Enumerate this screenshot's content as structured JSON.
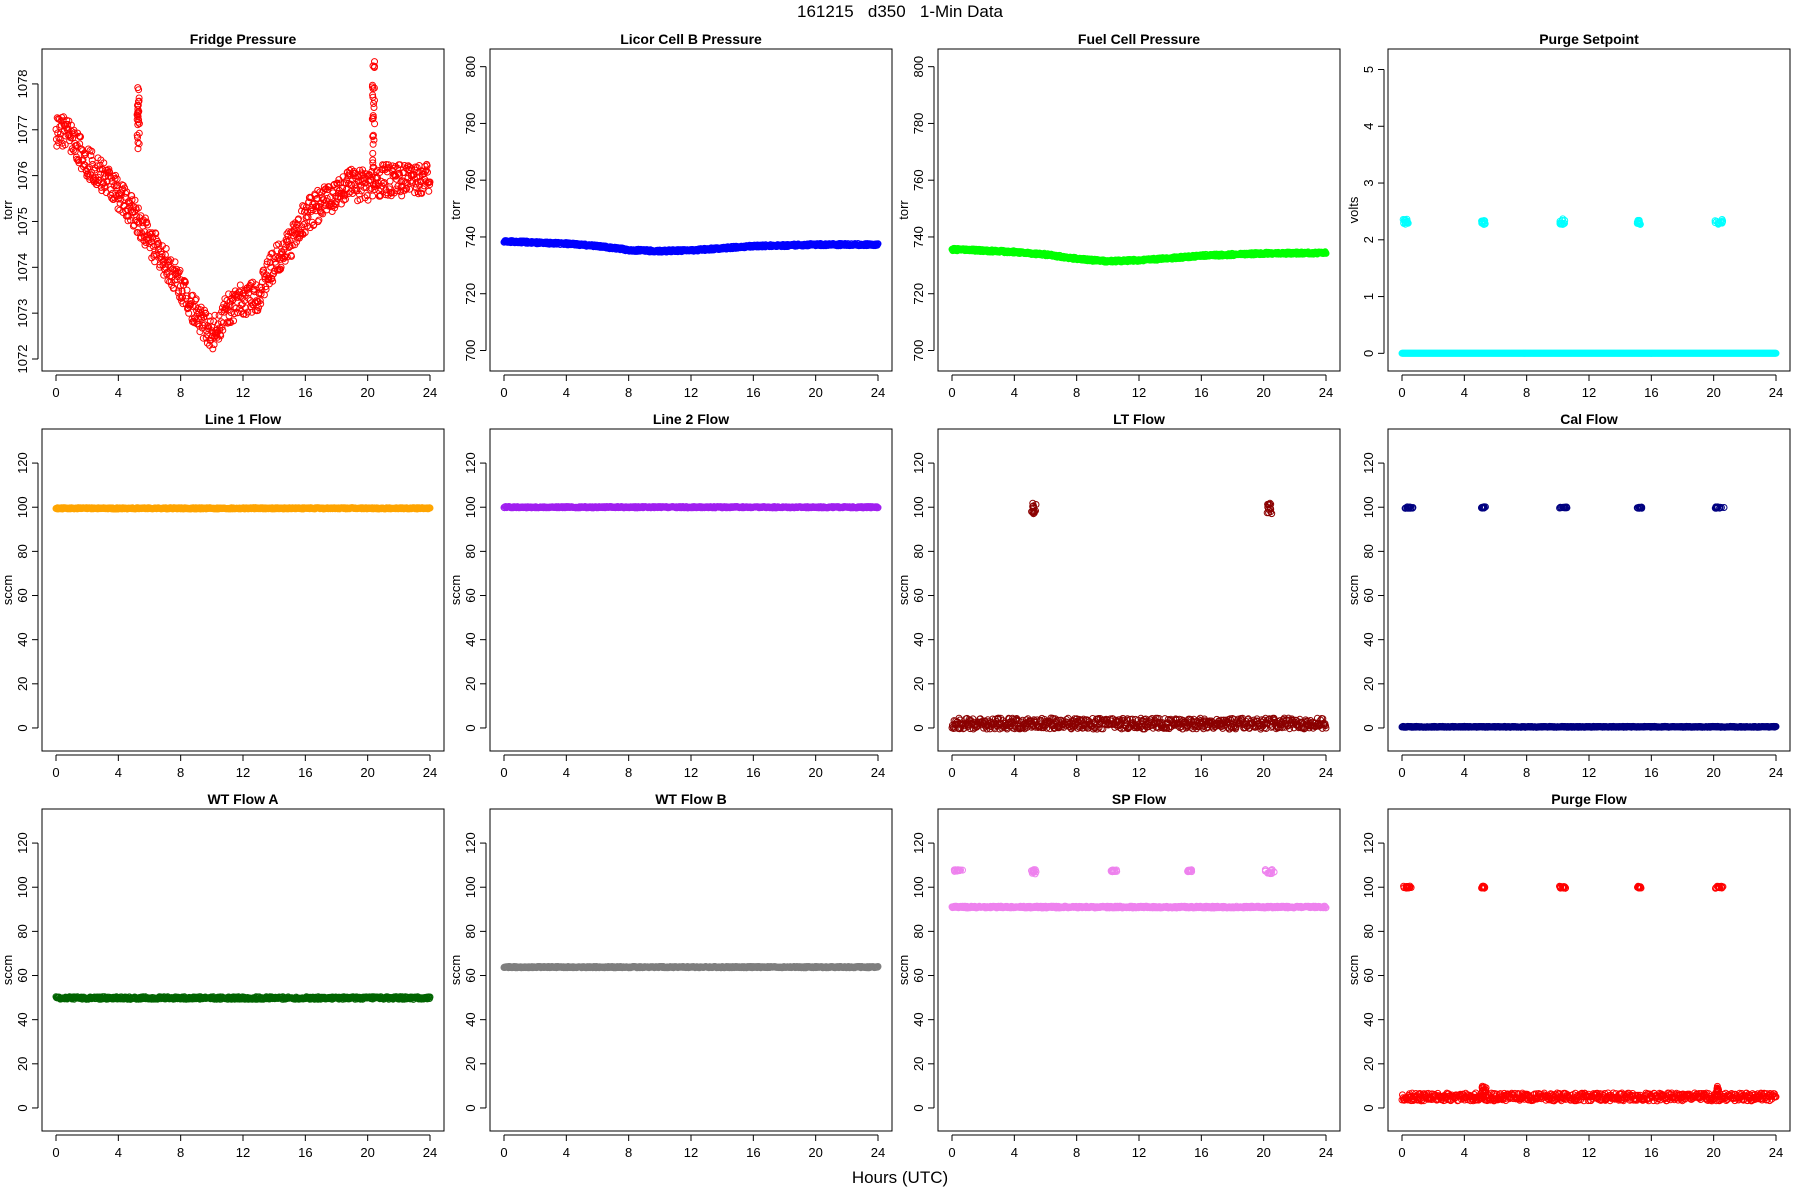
{
  "figure": {
    "title": "161215   d350   1-Min Data",
    "x_axis_title": "Hours (UTC)"
  },
  "chart_data": [
    {
      "type": "scatter",
      "title": "Fridge Pressure",
      "ylabel": "torr",
      "xlim": [
        0,
        24
      ],
      "ylim": [
        1072,
        1078.5
      ],
      "xticks": [
        0,
        4,
        8,
        12,
        16,
        20,
        24
      ],
      "yticks": [
        1072,
        1073,
        1074,
        1075,
        1076,
        1077,
        1078
      ],
      "color": "#ff0000",
      "marker": "open-circle",
      "series": [
        {
          "kind": "curve",
          "x": [
            0,
            0.5,
            1,
            2,
            3,
            4,
            5,
            6,
            7,
            8,
            9,
            10,
            11,
            12,
            13,
            14,
            15,
            16,
            17,
            18,
            19,
            20,
            21,
            22,
            23,
            24
          ],
          "y": [
            1076.9,
            1077.0,
            1076.8,
            1076.3,
            1076.0,
            1075.6,
            1075.2,
            1074.6,
            1074.1,
            1073.6,
            1073.0,
            1072.5,
            1073.1,
            1073.3,
            1073.4,
            1074.1,
            1074.5,
            1075.1,
            1075.4,
            1075.6,
            1075.8,
            1075.8,
            1075.9,
            1075.9,
            1075.9,
            1076.0
          ],
          "spread": 0.35
        },
        {
          "kind": "spike",
          "x": [
            5.2,
            5.35
          ],
          "y": [
            1076.4,
            1078.0
          ]
        },
        {
          "kind": "spike",
          "x": [
            20.3,
            20.45
          ],
          "y": [
            1076.2,
            1078.6
          ]
        }
      ]
    },
    {
      "type": "scatter",
      "title": "Licor Cell B Pressure",
      "ylabel": "torr",
      "xlim": [
        0,
        24
      ],
      "ylim": [
        697,
        802
      ],
      "xticks": [
        0,
        4,
        8,
        12,
        16,
        20,
        24
      ],
      "yticks": [
        700,
        720,
        740,
        760,
        780,
        800
      ],
      "color": "#0000ff",
      "marker": "open-circle",
      "series": [
        {
          "kind": "curve",
          "x": [
            0,
            2,
            4,
            6,
            8,
            10,
            12,
            14,
            16,
            18,
            20,
            22,
            24
          ],
          "y": [
            738.5,
            738.0,
            737.6,
            736.8,
            735.4,
            735.0,
            735.3,
            736.0,
            736.8,
            737.0,
            737.3,
            737.3,
            737.3
          ],
          "spread": 0.4
        }
      ]
    },
    {
      "type": "scatter",
      "title": "Fuel Cell Pressure",
      "ylabel": "torr",
      "xlim": [
        0,
        24
      ],
      "ylim": [
        697,
        802
      ],
      "xticks": [
        0,
        4,
        8,
        12,
        16,
        20,
        24
      ],
      "yticks": [
        700,
        720,
        740,
        760,
        780,
        800
      ],
      "color": "#00ff00",
      "marker": "open-circle",
      "series": [
        {
          "kind": "curve",
          "x": [
            0,
            2,
            4,
            6,
            8,
            10,
            12,
            14,
            16,
            18,
            20,
            22,
            24
          ],
          "y": [
            735.6,
            735.2,
            734.7,
            733.8,
            732.3,
            731.4,
            731.8,
            732.5,
            733.4,
            733.8,
            734.2,
            734.3,
            734.4
          ],
          "spread": 0.4
        }
      ]
    },
    {
      "type": "scatter",
      "title": "Purge Setpoint",
      "ylabel": "volts",
      "xlim": [
        0,
        24
      ],
      "ylim": [
        -0.1,
        5.15
      ],
      "xticks": [
        0,
        4,
        8,
        12,
        16,
        20,
        24
      ],
      "yticks": [
        0,
        1,
        2,
        3,
        4,
        5
      ],
      "color": "#00ffff",
      "marker": "open-circle",
      "series": [
        {
          "kind": "flat",
          "x": [
            0,
            24
          ],
          "y": 0.0,
          "spread": 0.0
        },
        {
          "kind": "cluster",
          "x": [
            0.05,
            0.4
          ],
          "y": [
            2.27,
            2.37
          ]
        },
        {
          "kind": "cluster",
          "x": [
            5.1,
            5.35
          ],
          "y": [
            2.27,
            2.35
          ]
        },
        {
          "kind": "cluster",
          "x": [
            10.1,
            10.45
          ],
          "y": [
            2.27,
            2.37
          ]
        },
        {
          "kind": "cluster",
          "x": [
            15.1,
            15.35
          ],
          "y": [
            2.27,
            2.35
          ]
        },
        {
          "kind": "cluster",
          "x": [
            20.05,
            20.6
          ],
          "y": [
            2.27,
            2.37
          ]
        }
      ]
    },
    {
      "type": "scatter",
      "title": "Line 1 Flow",
      "ylabel": "sccm",
      "xlim": [
        0,
        24
      ],
      "ylim": [
        -5,
        130
      ],
      "xticks": [
        0,
        4,
        8,
        12,
        16,
        20,
        24
      ],
      "yticks": [
        0,
        20,
        40,
        60,
        80,
        100,
        120
      ],
      "color": "#ffa500",
      "marker": "open-circle",
      "series": [
        {
          "kind": "flat",
          "x": [
            0,
            24
          ],
          "y": 99.5,
          "spread": 0.3
        }
      ]
    },
    {
      "type": "scatter",
      "title": "Line 2 Flow",
      "ylabel": "sccm",
      "xlim": [
        0,
        24
      ],
      "ylim": [
        -5,
        130
      ],
      "xticks": [
        0,
        4,
        8,
        12,
        16,
        20,
        24
      ],
      "yticks": [
        0,
        20,
        40,
        60,
        80,
        100,
        120
      ],
      "color": "#a020f0",
      "marker": "open-circle",
      "series": [
        {
          "kind": "flat",
          "x": [
            0,
            24
          ],
          "y": 100.0,
          "spread": 0.3
        }
      ]
    },
    {
      "type": "scatter",
      "title": "LT Flow",
      "ylabel": "sccm",
      "xlim": [
        0,
        24
      ],
      "ylim": [
        -5,
        130
      ],
      "xticks": [
        0,
        4,
        8,
        12,
        16,
        20,
        24
      ],
      "yticks": [
        0,
        20,
        40,
        60,
        80,
        100,
        120
      ],
      "color": "#8b0000",
      "marker": "open-circle",
      "series": [
        {
          "kind": "flat",
          "x": [
            0,
            24
          ],
          "y": 2.0,
          "spread": 2.5
        },
        {
          "kind": "cluster",
          "x": [
            5.1,
            5.4
          ],
          "y": [
            97,
            102
          ]
        },
        {
          "kind": "cluster",
          "x": [
            20.2,
            20.55
          ],
          "y": [
            97,
            102
          ]
        }
      ]
    },
    {
      "type": "scatter",
      "title": "Cal Flow",
      "ylabel": "sccm",
      "xlim": [
        0,
        24
      ],
      "ylim": [
        -5,
        130
      ],
      "xticks": [
        0,
        4,
        8,
        12,
        16,
        20,
        24
      ],
      "yticks": [
        0,
        20,
        40,
        60,
        80,
        100,
        120
      ],
      "color": "#000080",
      "marker": "open-circle",
      "series": [
        {
          "kind": "flat",
          "x": [
            0,
            24
          ],
          "y": 0.5,
          "spread": 0.2
        },
        {
          "kind": "cluster",
          "x": [
            0.2,
            0.7
          ],
          "y": [
            99.5,
            100.2
          ]
        },
        {
          "kind": "cluster",
          "x": [
            5.1,
            5.4
          ],
          "y": [
            99.5,
            100.2
          ]
        },
        {
          "kind": "cluster",
          "x": [
            10.1,
            10.6
          ],
          "y": [
            99.5,
            100.2
          ]
        },
        {
          "kind": "cluster",
          "x": [
            15.1,
            15.4
          ],
          "y": [
            99.5,
            100.2
          ]
        },
        {
          "kind": "cluster",
          "x": [
            20.1,
            20.7
          ],
          "y": [
            99.5,
            100.2
          ]
        }
      ]
    },
    {
      "type": "scatter",
      "title": "WT Flow A",
      "ylabel": "sccm",
      "xlim": [
        0,
        24
      ],
      "ylim": [
        -5,
        130
      ],
      "xticks": [
        0,
        4,
        8,
        12,
        16,
        20,
        24
      ],
      "yticks": [
        0,
        20,
        40,
        60,
        80,
        100,
        120
      ],
      "color": "#006400",
      "marker": "open-circle",
      "series": [
        {
          "kind": "flat",
          "x": [
            0,
            24
          ],
          "y": 49.8,
          "spread": 0.6
        }
      ]
    },
    {
      "type": "scatter",
      "title": "WT Flow B",
      "ylabel": "sccm",
      "xlim": [
        0,
        24
      ],
      "ylim": [
        -5,
        130
      ],
      "xticks": [
        0,
        4,
        8,
        12,
        16,
        20,
        24
      ],
      "yticks": [
        0,
        20,
        40,
        60,
        80,
        100,
        120
      ],
      "color": "#7f7f7f",
      "marker": "open-circle",
      "series": [
        {
          "kind": "flat",
          "x": [
            0,
            24
          ],
          "y": 63.8,
          "spread": 0.3
        }
      ]
    },
    {
      "type": "scatter",
      "title": "SP Flow",
      "ylabel": "sccm",
      "xlim": [
        0,
        24
      ],
      "ylim": [
        -5,
        130
      ],
      "xticks": [
        0,
        4,
        8,
        12,
        16,
        20,
        24
      ],
      "yticks": [
        0,
        20,
        40,
        60,
        80,
        100,
        120
      ],
      "color": "#ee82ee",
      "marker": "open-circle",
      "series": [
        {
          "kind": "flat",
          "x": [
            0,
            24
          ],
          "y": 91.0,
          "spread": 0.4
        },
        {
          "kind": "cluster",
          "x": [
            0.05,
            0.7
          ],
          "y": [
            107,
            108
          ]
        },
        {
          "kind": "cluster",
          "x": [
            5.1,
            5.4
          ],
          "y": [
            106,
            108
          ]
        },
        {
          "kind": "cluster",
          "x": [
            10.1,
            10.6
          ],
          "y": [
            107,
            108
          ]
        },
        {
          "kind": "cluster",
          "x": [
            15.1,
            15.4
          ],
          "y": [
            107,
            108
          ]
        },
        {
          "kind": "cluster",
          "x": [
            20.1,
            20.7
          ],
          "y": [
            106,
            108
          ]
        }
      ]
    },
    {
      "type": "scatter",
      "title": "Purge Flow",
      "ylabel": "sccm",
      "xlim": [
        0,
        24
      ],
      "ylim": [
        -5,
        130
      ],
      "xticks": [
        0,
        4,
        8,
        12,
        16,
        20,
        24
      ],
      "yticks": [
        0,
        20,
        40,
        60,
        80,
        100,
        120
      ],
      "color": "#ff0000",
      "marker": "open-circle",
      "series": [
        {
          "kind": "flat",
          "x": [
            0,
            24
          ],
          "y": 5.0,
          "spread": 1.8
        },
        {
          "kind": "cluster",
          "x": [
            5.1,
            5.4
          ],
          "y": [
            7,
            10
          ]
        },
        {
          "kind": "cluster",
          "x": [
            20.1,
            20.4
          ],
          "y": [
            7,
            10
          ]
        },
        {
          "kind": "cluster",
          "x": [
            0.05,
            0.6
          ],
          "y": [
            99.5,
            100.5
          ]
        },
        {
          "kind": "cluster",
          "x": [
            5.1,
            5.35
          ],
          "y": [
            99.5,
            100.5
          ]
        },
        {
          "kind": "cluster",
          "x": [
            10.1,
            10.5
          ],
          "y": [
            99.5,
            100.5
          ]
        },
        {
          "kind": "cluster",
          "x": [
            15.1,
            15.35
          ],
          "y": [
            99.5,
            100.5
          ]
        },
        {
          "kind": "cluster",
          "x": [
            20.1,
            20.6
          ],
          "y": [
            99.5,
            100.5
          ]
        }
      ]
    }
  ]
}
